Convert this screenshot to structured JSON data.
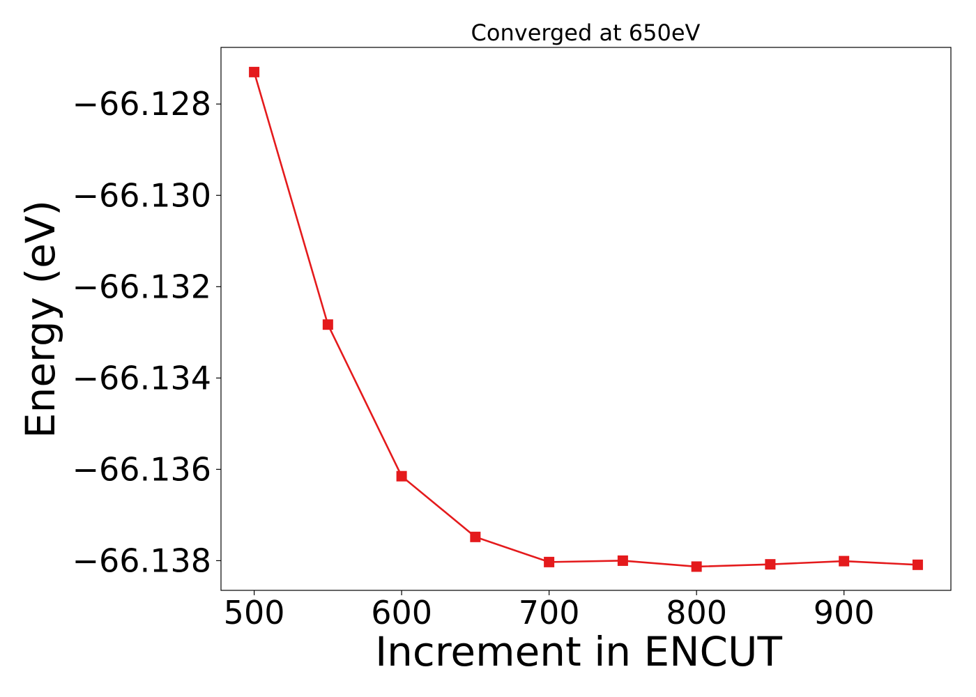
{
  "chart_data": {
    "type": "line",
    "title": "Converged at 650eV",
    "xlabel": "Increment in ENCUT",
    "ylabel": "Energy (eV)",
    "xlim": [
      477.5,
      972.5
    ],
    "ylim": [
      -66.13865,
      -66.12676
    ],
    "xticks": [
      500,
      600,
      700,
      800,
      900
    ],
    "xtick_labels": [
      "500",
      "600",
      "700",
      "800",
      "900"
    ],
    "yticks": [
      -66.128,
      -66.13,
      -66.132,
      -66.134,
      -66.136,
      -66.138
    ],
    "ytick_labels": [
      "−66.128",
      "−66.130",
      "−66.132",
      "−66.134",
      "−66.136",
      "−66.138"
    ],
    "grid": false,
    "series": [
      {
        "color": "#e41a1c",
        "marker": "square",
        "x": [
          500,
          550,
          600,
          650,
          700,
          750,
          800,
          850,
          900,
          950
        ],
        "y": [
          -66.1273,
          -66.13283,
          -66.13615,
          -66.13748,
          -66.13803,
          -66.138,
          -66.13813,
          -66.13808,
          -66.13801,
          -66.13809
        ]
      }
    ]
  }
}
